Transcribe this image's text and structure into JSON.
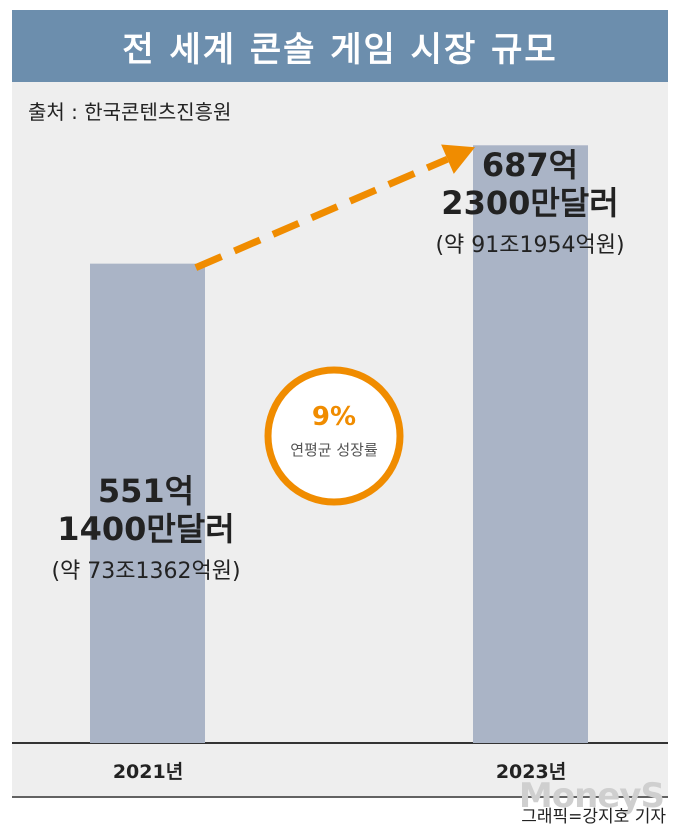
{
  "title": "전 세계 콘솔 게임 시장 규모",
  "source": "출처 : 한국콘텐츠진흥원",
  "credit": "그래픽=강지호 기자",
  "logo": "MoneyS",
  "colors": {
    "header": "#6c8ead",
    "bar": "#aab4c6",
    "accent": "#f08c00",
    "panel": "#eeeeee"
  },
  "chart_data": {
    "type": "bar",
    "title": "전 세계 콘솔 게임 시장 규모",
    "categories": [
      "2021년",
      "2023년"
    ],
    "values": [
      551.14,
      687.23
    ],
    "unit": "억달러",
    "ylim": [
      0,
      760
    ],
    "data_labels": [
      {
        "line1": "551억",
        "line2": "1400만달러",
        "line3": "(약 73조1362억원)"
      },
      {
        "line1": "687억",
        "line2": "2300만달러",
        "line3": "(약 91조1954억원)"
      }
    ],
    "annotation": {
      "value": "9%",
      "label": "연평균 성장률"
    },
    "grid": false,
    "legend": "none"
  }
}
